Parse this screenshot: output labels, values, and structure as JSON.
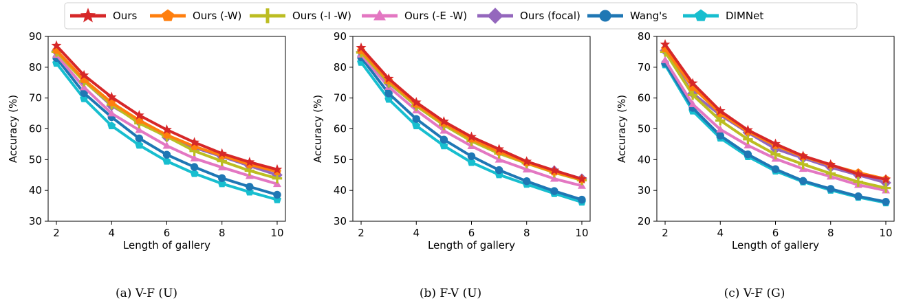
{
  "legend": {
    "items": [
      {
        "name": "Ours",
        "color": "#d62728",
        "marker": "star"
      },
      {
        "name": "Ours (-W)",
        "color": "#ff7f0e",
        "marker": "pentagon"
      },
      {
        "name": "Ours (-I -W)",
        "color": "#bcbd22",
        "marker": "plus"
      },
      {
        "name": "Ours (-E -W)",
        "color": "#e377c2",
        "marker": "triangle"
      },
      {
        "name": "Ours (focal)",
        "color": "#9467bd",
        "marker": "diamond"
      },
      {
        "name": "Wang's",
        "color": "#1f77b4",
        "marker": "circle"
      },
      {
        "name": "DIMNet",
        "color": "#17becf",
        "marker": "pentagon"
      }
    ]
  },
  "chart_data": [
    {
      "type": "line",
      "caption": "(a) V-F (U)",
      "xlabel": "Length of gallery",
      "ylabel": "Accuracy (%)",
      "x": [
        2,
        3,
        4,
        5,
        6,
        7,
        8,
        9,
        10
      ],
      "xticks": [
        2,
        4,
        6,
        8,
        10
      ],
      "xlim": [
        1.7,
        10.3
      ],
      "ylim": [
        30,
        90
      ],
      "yticks": [
        30,
        40,
        50,
        60,
        70,
        80,
        90
      ],
      "series": [
        {
          "name": "DIMNet",
          "values": [
            81.3,
            69.8,
            61.0,
            54.7,
            49.5,
            45.5,
            42.2,
            39.5,
            37.0
          ]
        },
        {
          "name": "Wang's",
          "values": [
            83.0,
            71.6,
            63.8,
            56.9,
            51.6,
            47.6,
            44.0,
            41.2,
            38.6
          ]
        },
        {
          "name": "Ours (-E -W)",
          "values": [
            84.0,
            73.5,
            65.0,
            59.6,
            54.5,
            50.4,
            47.5,
            44.7,
            42.1
          ]
        },
        {
          "name": "Ours (focal)",
          "values": [
            85.2,
            75.5,
            67.5,
            62.3,
            57.3,
            53.9,
            51.0,
            48.0,
            45.0
          ]
        },
        {
          "name": "Ours (-I -W)",
          "values": [
            85.0,
            75.4,
            67.9,
            61.8,
            57.5,
            52.8,
            49.5,
            46.4,
            43.9
          ]
        },
        {
          "name": "Ours (-W)",
          "values": [
            85.5,
            76.0,
            68.5,
            62.8,
            58.0,
            54.3,
            51.3,
            48.4,
            46.1
          ]
        },
        {
          "name": "Ours",
          "values": [
            87.0,
            77.4,
            70.3,
            64.4,
            59.7,
            55.6,
            52.0,
            49.2,
            46.8
          ]
        }
      ]
    },
    {
      "type": "line",
      "caption": "(b) F-V (U)",
      "xlabel": "Length of gallery",
      "ylabel": "Accuracy (%)",
      "x": [
        2,
        3,
        4,
        5,
        6,
        7,
        8,
        9,
        10
      ],
      "xticks": [
        2,
        4,
        6,
        8,
        10
      ],
      "xlim": [
        1.7,
        10.3
      ],
      "ylim": [
        30,
        90
      ],
      "yticks": [
        30,
        40,
        50,
        60,
        70,
        80,
        90
      ],
      "series": [
        {
          "name": "DIMNet",
          "values": [
            81.6,
            69.6,
            61.0,
            54.5,
            49.1,
            45.1,
            42.0,
            39.0,
            36.2
          ]
        },
        {
          "name": "Wang's",
          "values": [
            83.2,
            71.5,
            63.2,
            56.5,
            51.1,
            46.6,
            43.0,
            39.8,
            37.0
          ]
        },
        {
          "name": "Ours (-E -W)",
          "values": [
            84.1,
            73.6,
            66.0,
            59.4,
            54.4,
            50.0,
            46.8,
            43.8,
            41.5
          ]
        },
        {
          "name": "Ours (focal)",
          "values": [
            85.0,
            74.8,
            67.6,
            61.5,
            56.5,
            52.5,
            49.0,
            46.4,
            43.8
          ]
        },
        {
          "name": "Ours (-I -W)",
          "values": [
            84.8,
            75.0,
            67.4,
            61.2,
            56.0,
            52.0,
            48.8,
            45.8,
            43.3
          ]
        },
        {
          "name": "Ours (-W)",
          "values": [
            85.4,
            75.6,
            68.0,
            61.8,
            56.7,
            52.6,
            49.0,
            46.0,
            43.5
          ]
        },
        {
          "name": "Ours",
          "values": [
            86.3,
            76.3,
            68.6,
            62.4,
            57.4,
            53.4,
            49.4,
            46.5,
            43.7
          ]
        }
      ]
    },
    {
      "type": "line",
      "caption": "(c) V-F (G)",
      "xlabel": "Length of gallery",
      "ylabel": "Accuracy (%)",
      "x": [
        2,
        3,
        4,
        5,
        6,
        7,
        8,
        9,
        10
      ],
      "xticks": [
        2,
        4,
        6,
        8,
        10
      ],
      "xlim": [
        1.7,
        10.3
      ],
      "ylim": [
        20,
        80
      ],
      "yticks": [
        20,
        30,
        40,
        50,
        60,
        70,
        80
      ],
      "series": [
        {
          "name": "DIMNet",
          "values": [
            70.8,
            55.8,
            47.0,
            41.0,
            36.3,
            32.8,
            30.1,
            27.8,
            26.0
          ]
        },
        {
          "name": "Wang's",
          "values": [
            71.3,
            56.8,
            47.8,
            41.7,
            36.9,
            33.1,
            30.5,
            28.1,
            26.3
          ]
        },
        {
          "name": "Ours (-E -W)",
          "values": [
            72.3,
            58.0,
            49.8,
            44.6,
            40.3,
            37.0,
            34.5,
            31.8,
            30.0
          ]
        },
        {
          "name": "Ours (focal)",
          "values": [
            75.4,
            61.5,
            54.5,
            48.8,
            43.5,
            40.5,
            37.5,
            35.0,
            32.5
          ]
        },
        {
          "name": "Ours (-I -W)",
          "values": [
            75.0,
            61.0,
            52.7,
            46.6,
            41.7,
            38.5,
            35.5,
            32.8,
            30.8
          ]
        },
        {
          "name": "Ours (-W)",
          "values": [
            76.0,
            63.5,
            55.0,
            49.1,
            44.6,
            41.0,
            38.2,
            35.8,
            33.7
          ]
        },
        {
          "name": "Ours",
          "values": [
            77.4,
            64.8,
            55.8,
            49.6,
            45.1,
            41.2,
            38.4,
            35.3,
            33.6
          ]
        }
      ]
    }
  ]
}
